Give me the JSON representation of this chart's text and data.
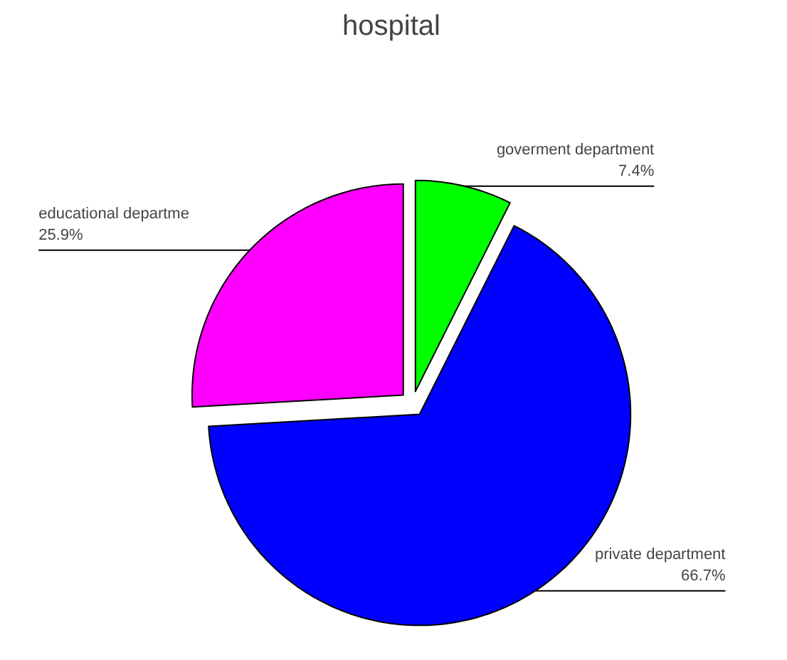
{
  "chart_data": {
    "type": "pie",
    "title": "hospital",
    "categories": [
      "goverment department",
      "private department",
      "educational departme"
    ],
    "values": [
      7.4,
      66.7,
      25.9
    ],
    "colors": [
      "#00ff00",
      "#0000ff",
      "#ff00ff"
    ],
    "value_labels": [
      "7.4%",
      "66.7%",
      "25.9%"
    ]
  }
}
